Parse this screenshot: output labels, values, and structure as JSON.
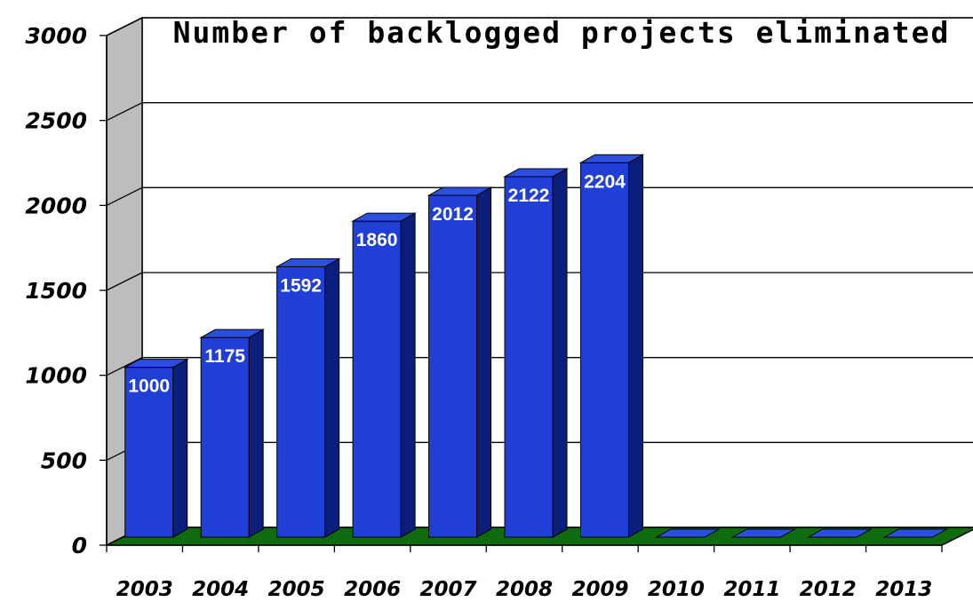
{
  "chart_data": {
    "type": "bar",
    "title": "Number of backlogged projects eliminated",
    "xlabel": "",
    "ylabel": "",
    "categories": [
      "2003",
      "2004",
      "2005",
      "2006",
      "2007",
      "2008",
      "2009",
      "2010",
      "2011",
      "2012",
      "2013"
    ],
    "values": [
      1000,
      1175,
      1592,
      1860,
      2012,
      2122,
      2204,
      0,
      0,
      0,
      0
    ],
    "data_labels": [
      "1000",
      "1175",
      "1592",
      "1860",
      "2012",
      "2122",
      "2204",
      "",
      "",
      "",
      ""
    ],
    "yticks": [
      "0",
      "500",
      "1000",
      "1500",
      "2000",
      "2500",
      "3000"
    ],
    "ylim": [
      0,
      3000
    ],
    "grid": true,
    "legend": "none",
    "colors": {
      "bar_front": "#1f3fd6",
      "bar_top": "#2c4fe0",
      "bar_side": "#0b1f7a",
      "floor": "#0e6b0e",
      "side_wall": "#bdbdbd",
      "back_wall": "#ffffff",
      "label_text": "#ffffff"
    }
  }
}
